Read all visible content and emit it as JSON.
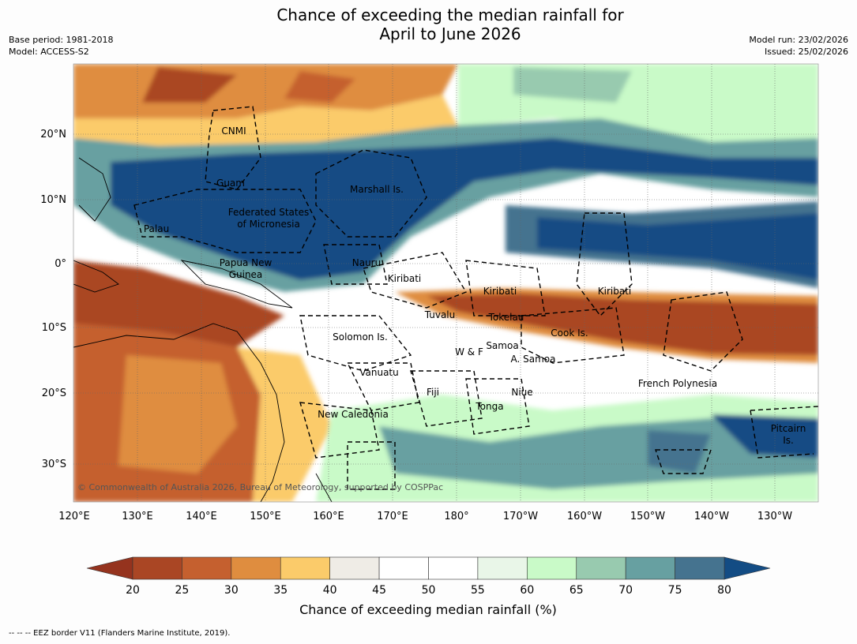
{
  "title_line1": "Chance of exceeding the median rainfall for",
  "title_line2": "April to June 2026",
  "base_period": "Base period: 1981-2018",
  "model": "Model: ACCESS-S2",
  "model_run": "Model run: 23/02/2026",
  "issued": "Issued: 25/02/2026",
  "copyright": "© Commonwealth of Australia 2026, Bureau of Meteorology, supported by COSPPac",
  "footnote": "--  --  -- EEZ border V11 (Flanders Marine Institute, 2019).",
  "lon_labels": [
    "120°E",
    "130°E",
    "140°E",
    "150°E",
    "160°E",
    "170°E",
    "180°",
    "170°W",
    "160°W",
    "150°W",
    "140°W",
    "130°W"
  ],
  "lat_labels": [
    "20°N",
    "10°N",
    "0°",
    "10°S",
    "20°S",
    "30°S"
  ],
  "region_labels": [
    "CNMI",
    "Guam",
    "Marshall Is.",
    "Federated States",
    "of Micronesia",
    "Palau",
    "Papua New",
    "Guinea",
    "Nauru",
    "Kiribati",
    "Kiribati",
    "Kiribati",
    "Tuvalu",
    "Tokelau",
    "Cook Is.",
    "Solomon Is.",
    "W & F",
    "Samoa",
    "A. Samoa",
    "Vanuatu",
    "Fiji",
    "Niue",
    "Tonga",
    "French Polynesia",
    "New Caledonia",
    "Pitcairn",
    "Is."
  ],
  "colorbar": {
    "ticks": [
      "20",
      "25",
      "30",
      "35",
      "40",
      "45",
      "50",
      "55",
      "60",
      "65",
      "70",
      "75",
      "80"
    ],
    "label": "Chance of exceeding median rainfall (%)",
    "colors": [
      "#aa4624",
      "#c5602f",
      "#df8d3f",
      "#fbcb6a",
      "#efece6",
      "#ffffff",
      "#ffffff",
      "#e9f6e8",
      "#c9fac8",
      "#98caaf",
      "#67a0a1",
      "#45738f",
      "#134c84"
    ],
    "under_color": "#95331e",
    "over_color": "#134c84"
  }
}
